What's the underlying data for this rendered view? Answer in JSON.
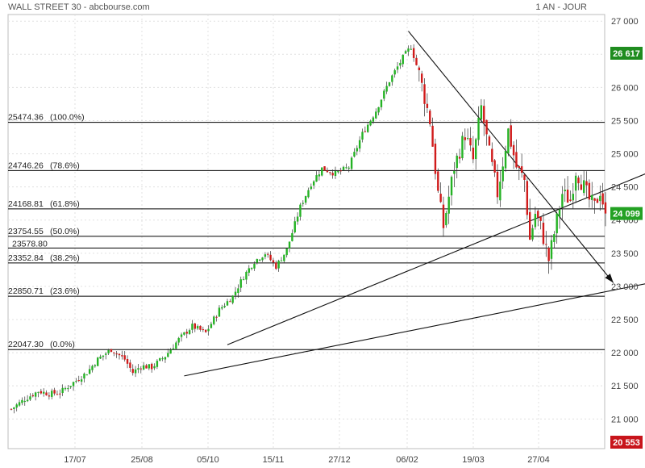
{
  "header": {
    "title": "WALL STREET 30 - abcbourse.com",
    "period": "1 AN - JOUR"
  },
  "chart_data": {
    "type": "candlestick",
    "x_labels": [
      "17/07",
      "25/08",
      "05/10",
      "15/11",
      "27/12",
      "06/02",
      "19/03",
      "27/04"
    ],
    "y_ticks": [
      "27 000",
      "26 500",
      "26 000",
      "25 500",
      "25 000",
      "24 500",
      "24 000",
      "23 500",
      "23 000",
      "22 500",
      "22 000",
      "21 500",
      "21 000"
    ],
    "ylim": [
      20553,
      27100
    ],
    "last_price": {
      "value": 24099,
      "label": "24 099",
      "color": "#23a123"
    },
    "high_badge": {
      "value": 26617,
      "label": "26 617",
      "color": "#1f8c1f"
    },
    "low_badge": {
      "value": 20553,
      "label": "20 553",
      "color": "#c8141b"
    },
    "fibonacci": [
      {
        "value": 25474.36,
        "label": "25474.36",
        "pct": "(100.0%)"
      },
      {
        "value": 24746.26,
        "label": "24746.26",
        "pct": "(78.6%)"
      },
      {
        "value": 24168.81,
        "label": "24168.81",
        "pct": "(61.8%)"
      },
      {
        "value": 23754.55,
        "label": "23754.55",
        "pct": "(50.0%)"
      },
      {
        "value": 23352.84,
        "label": "23352.84",
        "pct": "(38.2%)"
      },
      {
        "value": 22850.71,
        "label": "22850.71",
        "pct": "(23.6%)"
      },
      {
        "value": 22047.3,
        "label": "22047.30",
        "pct": "(0.0%)"
      }
    ],
    "extra_level": {
      "value": 23578.8,
      "label": "23578.80"
    },
    "price_path": [
      [
        0,
        21150
      ],
      [
        5,
        21300
      ],
      [
        10,
        21420
      ],
      [
        14,
        21380
      ],
      [
        18,
        21400
      ],
      [
        23,
        21550
      ],
      [
        28,
        21700
      ],
      [
        32,
        21900
      ],
      [
        37,
        22050
      ],
      [
        42,
        21900
      ],
      [
        45,
        21700
      ],
      [
        48,
        21800
      ],
      [
        52,
        21780
      ],
      [
        57,
        21950
      ],
      [
        62,
        22200
      ],
      [
        67,
        22400
      ],
      [
        72,
        22300
      ],
      [
        77,
        22650
      ],
      [
        82,
        22850
      ],
      [
        86,
        23150
      ],
      [
        90,
        23380
      ],
      [
        94,
        23500
      ],
      [
        98,
        23300
      ],
      [
        102,
        23550
      ],
      [
        107,
        24200
      ],
      [
        111,
        24550
      ],
      [
        115,
        24780
      ],
      [
        120,
        24700
      ],
      [
        125,
        24800
      ],
      [
        130,
        25300
      ],
      [
        135,
        25650
      ],
      [
        140,
        26100
      ],
      [
        145,
        26450
      ],
      [
        148,
        26617
      ],
      [
        151,
        26200
      ],
      [
        155,
        25500
      ],
      [
        158,
        24400
      ],
      [
        160,
        23900
      ],
      [
        164,
        24800
      ],
      [
        168,
        25300
      ],
      [
        171,
        24900
      ],
      [
        174,
        25700
      ],
      [
        177,
        25000
      ],
      [
        180,
        24400
      ],
      [
        184,
        25350
      ],
      [
        187,
        24800
      ],
      [
        190,
        24600
      ],
      [
        192,
        23700
      ],
      [
        194,
        24100
      ],
      [
        196,
        23900
      ],
      [
        199,
        23400
      ],
      [
        201,
        23800
      ],
      [
        204,
        24400
      ],
      [
        207,
        24300
      ],
      [
        209,
        24750
      ],
      [
        212,
        24500
      ],
      [
        214,
        24300
      ],
      [
        216,
        24200
      ],
      [
        218,
        24450
      ],
      [
        220,
        24099
      ]
    ],
    "trendlines": [
      {
        "from": [
          80,
          22120
        ],
        "to": [
          316,
          26050
        ]
      },
      {
        "from": [
          64,
          21650
        ],
        "to": [
          316,
          23700
        ]
      },
      {
        "from": [
          147,
          26850
        ],
        "to": [
          218,
          23300
        ]
      }
    ]
  }
}
